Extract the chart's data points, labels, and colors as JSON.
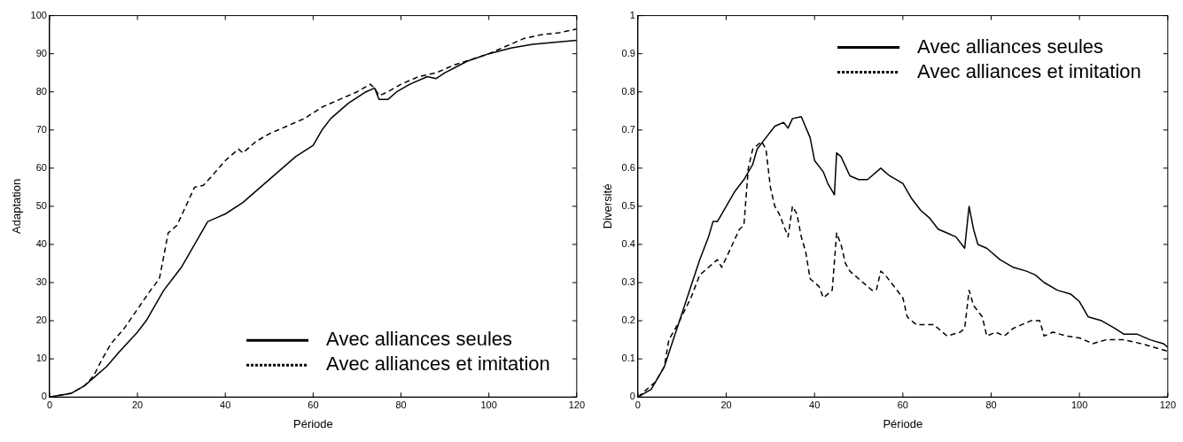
{
  "chart_data": [
    {
      "type": "line",
      "xlabel": "Période",
      "ylabel": "Adaptation",
      "xlim": [
        0,
        120
      ],
      "ylim": [
        0,
        100
      ],
      "xticks": [
        0,
        20,
        40,
        60,
        80,
        100,
        120
      ],
      "yticks": [
        0,
        10,
        20,
        30,
        40,
        50,
        60,
        70,
        80,
        90,
        100
      ],
      "legend": "bottom right",
      "marker": "none",
      "series": [
        {
          "name": "Avec alliances seules",
          "color": "#000000",
          "line_style": "solid",
          "x": [
            0,
            5,
            8,
            10,
            13,
            16,
            20,
            22,
            24,
            26,
            28,
            30,
            32,
            34,
            36,
            38,
            40,
            44,
            48,
            52,
            56,
            60,
            62,
            64,
            68,
            72,
            74,
            75,
            77,
            79,
            82,
            86,
            88,
            90,
            95,
            100,
            105,
            110,
            115,
            120
          ],
          "values": [
            0,
            1,
            3,
            5,
            8,
            12,
            17,
            20,
            24,
            28,
            31,
            34,
            38,
            42,
            46,
            47,
            48,
            51,
            55,
            59,
            63,
            66,
            70,
            73,
            77,
            80,
            81,
            78,
            78,
            80,
            82,
            84,
            83.5,
            85,
            88,
            90,
            91.5,
            92.5,
            93,
            93.5
          ]
        },
        {
          "name": "Avec alliances et imitation",
          "color": "#000000",
          "line_style": "dashed",
          "x": [
            0,
            5,
            8,
            10,
            12,
            14,
            17,
            20,
            23,
            25,
            27,
            29,
            31,
            33,
            35,
            37,
            40,
            43,
            44,
            47,
            50,
            54,
            58,
            62,
            66,
            70,
            73,
            74,
            75,
            77,
            80,
            84,
            88,
            92,
            96,
            100,
            104,
            108,
            112,
            116,
            120
          ],
          "values": [
            0,
            1,
            3,
            5.5,
            10,
            14,
            18,
            23,
            28,
            31,
            43,
            45,
            50,
            55,
            55.5,
            58,
            62,
            65,
            64,
            67,
            69,
            71,
            73,
            76,
            78,
            80,
            82,
            81,
            79,
            80,
            82,
            84,
            85,
            87,
            88.5,
            90,
            92,
            94,
            95,
            95.5,
            96.5
          ]
        }
      ]
    },
    {
      "type": "line",
      "xlabel": "Période",
      "ylabel": "Diversité",
      "xlim": [
        0,
        120
      ],
      "ylim": [
        0,
        1
      ],
      "xticks": [
        0,
        20,
        40,
        60,
        80,
        100,
        120
      ],
      "yticks": [
        0,
        0.1,
        0.2,
        0.3,
        0.4,
        0.5,
        0.6,
        0.7,
        0.8,
        0.9,
        1
      ],
      "legend": "top right",
      "marker": "none",
      "series": [
        {
          "name": "Avec alliances seules",
          "color": "#000000",
          "line_style": "solid",
          "x": [
            0,
            3,
            6,
            8,
            10,
            12,
            14,
            16,
            17,
            18,
            20,
            22,
            24,
            26,
            27,
            29,
            31,
            33,
            34,
            35,
            37,
            39,
            40,
            42,
            43,
            44,
            44.5,
            45,
            46,
            48,
            50,
            52,
            55,
            57,
            60,
            62,
            64,
            66,
            68,
            70,
            72,
            74,
            75,
            76,
            77,
            79,
            82,
            85,
            88,
            90,
            92,
            95,
            98,
            100,
            102,
            105,
            108,
            110,
            113,
            116,
            119,
            120
          ],
          "values": [
            0,
            0.02,
            0.08,
            0.15,
            0.22,
            0.29,
            0.36,
            0.42,
            0.46,
            0.46,
            0.5,
            0.54,
            0.57,
            0.61,
            0.65,
            0.68,
            0.71,
            0.72,
            0.705,
            0.73,
            0.735,
            0.68,
            0.62,
            0.59,
            0.56,
            0.54,
            0.53,
            0.64,
            0.63,
            0.58,
            0.57,
            0.57,
            0.6,
            0.58,
            0.56,
            0.52,
            0.49,
            0.47,
            0.44,
            0.43,
            0.42,
            0.39,
            0.5,
            0.44,
            0.4,
            0.39,
            0.36,
            0.34,
            0.33,
            0.32,
            0.3,
            0.28,
            0.27,
            0.25,
            0.21,
            0.2,
            0.18,
            0.165,
            0.165,
            0.15,
            0.14,
            0.13
          ]
        },
        {
          "name": "Avec alliances et imitation",
          "color": "#000000",
          "line_style": "dashed",
          "x": [
            0,
            4,
            6,
            7,
            9,
            12,
            14,
            16,
            18,
            19,
            21,
            23,
            24,
            25,
            26,
            28,
            29,
            30,
            31,
            32,
            33,
            34,
            35,
            36,
            37,
            38,
            39,
            41,
            42,
            43,
            44,
            45,
            46,
            47,
            48,
            50,
            53,
            54,
            55,
            56,
            58,
            60,
            61,
            63,
            67,
            70,
            73,
            74,
            75,
            76,
            78,
            79,
            81,
            83,
            85,
            87,
            89,
            91,
            92,
            94,
            97,
            100,
            103,
            106,
            110,
            114,
            117,
            120
          ],
          "values": [
            0,
            0.04,
            0.08,
            0.15,
            0.19,
            0.26,
            0.32,
            0.34,
            0.36,
            0.34,
            0.39,
            0.44,
            0.45,
            0.6,
            0.65,
            0.67,
            0.65,
            0.55,
            0.5,
            0.48,
            0.45,
            0.42,
            0.5,
            0.48,
            0.42,
            0.38,
            0.31,
            0.29,
            0.26,
            0.27,
            0.28,
            0.43,
            0.4,
            0.35,
            0.33,
            0.31,
            0.28,
            0.28,
            0.33,
            0.32,
            0.29,
            0.26,
            0.21,
            0.19,
            0.19,
            0.16,
            0.17,
            0.18,
            0.28,
            0.24,
            0.21,
            0.16,
            0.17,
            0.16,
            0.18,
            0.19,
            0.2,
            0.2,
            0.16,
            0.17,
            0.16,
            0.155,
            0.14,
            0.15,
            0.15,
            0.14,
            0.13,
            0.12
          ]
        }
      ]
    }
  ]
}
